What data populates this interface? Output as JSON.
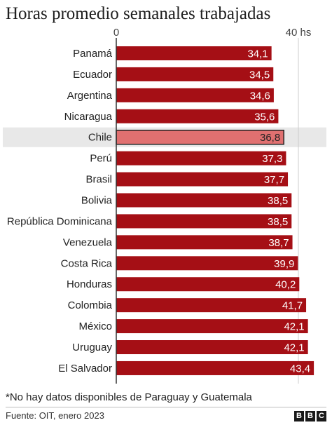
{
  "title": "Horas promedio semanales trabajadas",
  "footnote": "*No hay datos disponibles de Paraguay y Guatemala",
  "source": "Fuente: OIT, enero 2023",
  "logo": [
    "B",
    "B",
    "C"
  ],
  "colors": {
    "bar": "#a50f15",
    "highlight_bar": "#e07070",
    "highlight_row": "#e8e8e8",
    "gridline": "#cccccc"
  },
  "chart_data": {
    "type": "bar",
    "orientation": "horizontal",
    "categories": [
      "Panamá",
      "Ecuador",
      "Argentina",
      "Nicaragua",
      "Chile",
      "Perú",
      "Brasil",
      "Bolivia",
      "República Dominicana",
      "Venezuela",
      "Costa Rica",
      "Honduras",
      "Colombia",
      "México",
      "Uruguay",
      "El Salvador"
    ],
    "values": [
      34.1,
      34.5,
      34.6,
      35.6,
      36.8,
      37.3,
      37.7,
      38.5,
      38.5,
      38.7,
      39.9,
      40.2,
      41.7,
      42.1,
      42.1,
      43.4
    ],
    "value_labels": [
      "34,1",
      "34,5",
      "34,6",
      "35,6",
      "36,8",
      "37,3",
      "37,7",
      "38,5",
      "38,5",
      "38,7",
      "39,9",
      "40,2",
      "41,7",
      "42,1",
      "42,1",
      "43,4"
    ],
    "tick_labels": [
      "0",
      "40 hs"
    ],
    "ticks": [
      0,
      40
    ],
    "xlim": [
      0,
      45
    ],
    "highlight": "Chile",
    "grid": true
  }
}
